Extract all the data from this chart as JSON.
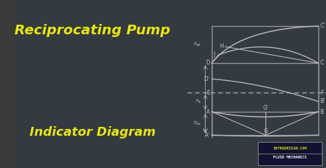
{
  "title1": "Reciprocating Pump",
  "title2": "Indicator Diagram",
  "title1_color": "#e8e800",
  "title2_color": "#e8e800",
  "bg_color": "#3a3a3a",
  "diagram_border": "#999999",
  "line_color": "#bbbbbb",
  "dashed_color": "#aaaaaa",
  "label_color": "#cccccc",
  "watermark1": "EXTRUDESIGN.COM",
  "watermark2": "FLUID MECHANICS",
  "watermark_bg": "#111133"
}
